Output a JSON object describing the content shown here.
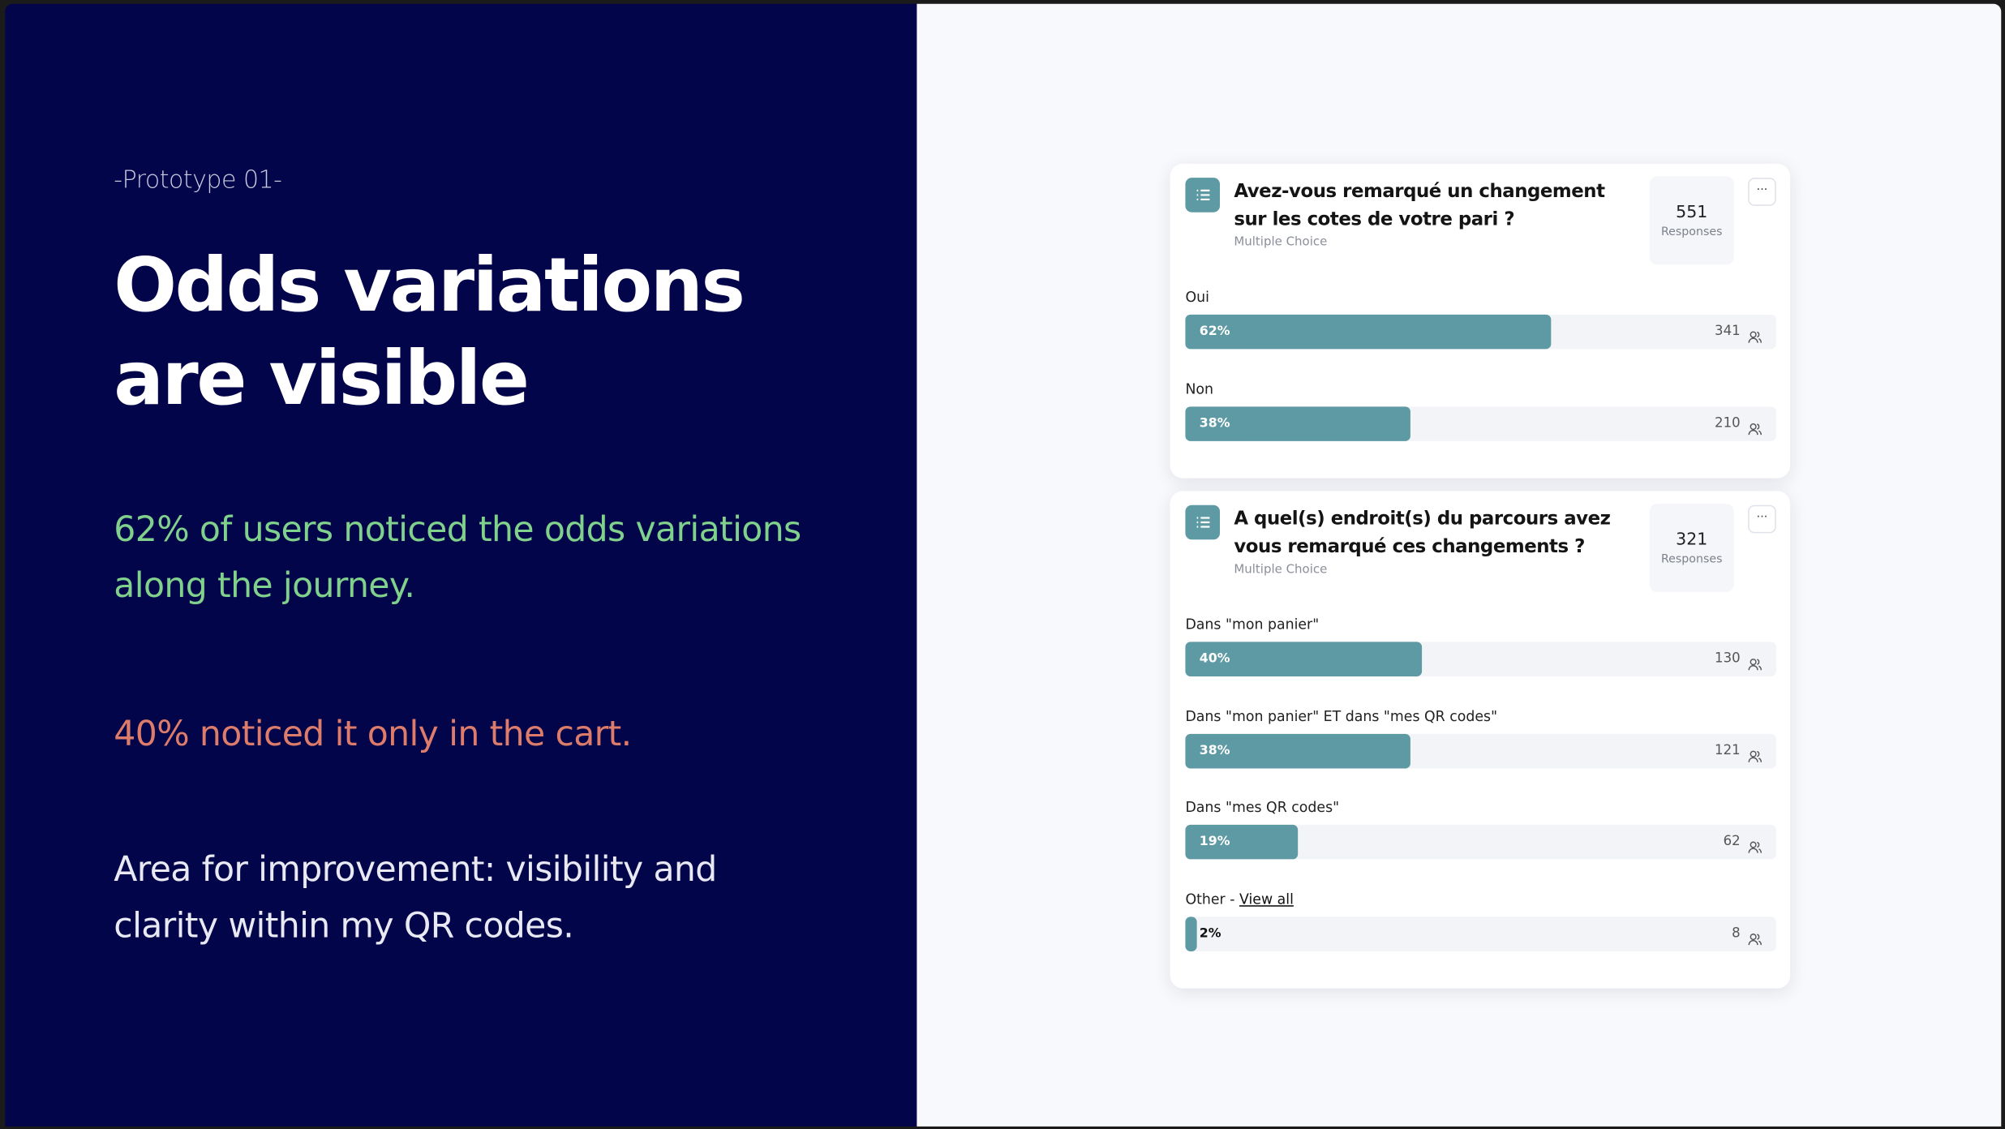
{
  "left": {
    "kicker": "-Prototype 01-",
    "title": "Odds variations are visible",
    "finding_1": "62% of users noticed the odds variations along the journey.",
    "finding_2": "40% noticed it only in the cart.",
    "finding_3": "Area for improvement: visibility and clarity within my QR codes."
  },
  "cards": [
    {
      "question": "Avez-vous remarqué un changement sur les cotes de votre pari ?",
      "kind": "Multiple Choice",
      "responses": 551,
      "responses_label": "Responses",
      "menu": "···",
      "options": [
        {
          "label": "Oui",
          "value": 62,
          "value_label": "62%",
          "count": 341
        },
        {
          "label": "Non",
          "value": 38,
          "value_label": "38%",
          "count": 210
        }
      ]
    },
    {
      "question": "A quel(s) endroit(s) du parcours avez vous remarqué ces changements ?",
      "kind": "Multiple Choice",
      "responses": 321,
      "responses_label": "Responses",
      "menu": "···",
      "options": [
        {
          "label": "Dans \"mon panier\"",
          "value": 40,
          "value_label": "40%",
          "count": 130
        },
        {
          "label": "Dans \"mon panier\" ET dans \"mes QR codes\"",
          "value": 38,
          "value_label": "38%",
          "count": 121
        },
        {
          "label": "Dans \"mes QR codes\"",
          "value": 19,
          "value_label": "19%",
          "count": 62
        },
        {
          "label": "Other -",
          "link": "View all",
          "value": 2,
          "value_label": "2%",
          "count": 8
        }
      ]
    }
  ]
}
